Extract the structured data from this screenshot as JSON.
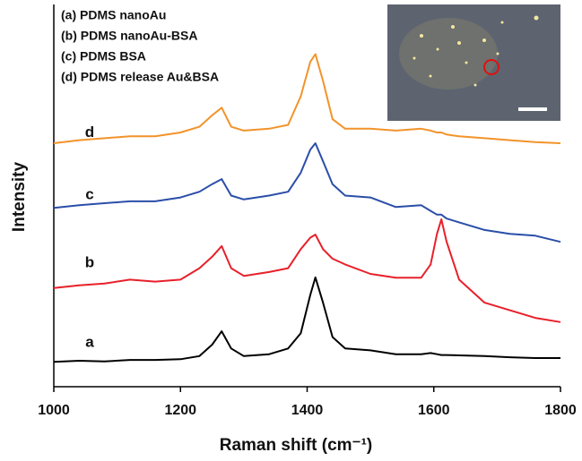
{
  "chart_data": {
    "type": "line",
    "x_label": "Raman shift (cm⁻¹)",
    "y_label": "Intensity",
    "legend_entries": [
      "(a) PDMS nanoAu",
      "(b) PDMS nanoAu-BSA",
      "(c) PDMS BSA",
      "(d) PDMS release Au&BSA"
    ],
    "x": [
      1000,
      1040,
      1080,
      1120,
      1160,
      1200,
      1230,
      1250,
      1265,
      1280,
      1300,
      1340,
      1370,
      1390,
      1405,
      1413,
      1425,
      1440,
      1460,
      1500,
      1540,
      1580,
      1595,
      1605,
      1612,
      1620,
      1640,
      1680,
      1720,
      1760,
      1800
    ],
    "series": [
      {
        "name": "a",
        "color": "#000000",
        "values": [
          6.5,
          6.8,
          6.6,
          7,
          7,
          7.2,
          8,
          11,
          14.5,
          10,
          8,
          8.5,
          10,
          14,
          24,
          28.6,
          22,
          13,
          10,
          9.5,
          8.5,
          8.5,
          8.8,
          8.5,
          8.3,
          8.3,
          8.2,
          8,
          7.7,
          7.5,
          7.5
        ]
      },
      {
        "name": "b",
        "color": "#e8202a",
        "values": [
          25.8,
          26.5,
          27,
          28,
          27.5,
          28,
          31,
          34,
          36.8,
          31,
          29,
          30,
          31,
          36,
          39,
          39.8,
          36,
          33.5,
          32,
          29.5,
          28.5,
          28.5,
          32,
          40,
          43.8,
          38,
          28,
          22,
          20,
          18,
          16.9
        ]
      },
      {
        "name": "c",
        "color": "#2a4ea8",
        "values": [
          46.8,
          47.5,
          48,
          48.5,
          48.5,
          49.5,
          51,
          53,
          54.3,
          50,
          49,
          50,
          51,
          56,
          62,
          63.7,
          59,
          53,
          50,
          49.5,
          47,
          47.5,
          46,
          45,
          45,
          44,
          43,
          41,
          40,
          39.5,
          37.9
        ]
      },
      {
        "name": "d",
        "color": "#f2932a",
        "values": [
          63.7,
          64.5,
          65,
          65.5,
          65.5,
          66.5,
          68,
          71,
          73,
          68,
          67,
          67.5,
          68.5,
          76,
          85,
          87,
          80,
          70,
          67.5,
          67.5,
          67,
          67.5,
          67,
          66.5,
          66.5,
          66,
          65.5,
          65,
          64.5,
          64,
          63.7
        ]
      }
    ],
    "xlim": [
      1000,
      1800
    ],
    "xticks": [
      1000,
      1200,
      1400,
      1600,
      1800
    ],
    "ylim": [
      0,
      100
    ]
  }
}
